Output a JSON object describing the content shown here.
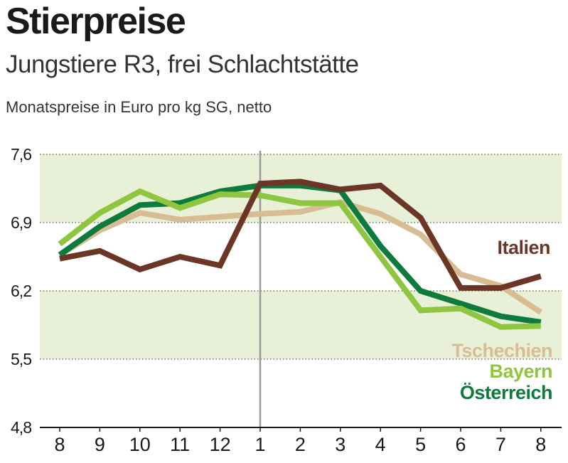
{
  "header": {
    "title": "Stierpreise",
    "subtitle": "Jungstiere R3, frei Schlachtstätte",
    "units": "Monatspreise in Euro pro kg SG, netto"
  },
  "chart_data": {
    "type": "line",
    "categories": [
      "8",
      "9",
      "10",
      "11",
      "12",
      "1",
      "2",
      "3",
      "4",
      "5",
      "6",
      "7",
      "8"
    ],
    "ylim": [
      4.8,
      7.6
    ],
    "yticks": [
      "7,6",
      "6,9",
      "6,2",
      "5,5",
      "4,8"
    ],
    "ytick_values": [
      7.6,
      6.9,
      6.2,
      5.5,
      4.8
    ],
    "band_color": "#e8f0d8",
    "divider_after_category_index": 5,
    "series": [
      {
        "name": "Tschechien",
        "color": "#d8bd94",
        "values": [
          6.57,
          6.82,
          7.0,
          6.93,
          6.96,
          6.99,
          7.01,
          7.11,
          6.99,
          6.78,
          6.37,
          6.25,
          5.98
        ]
      },
      {
        "name": "Österreich",
        "color": "#0e7a3c",
        "values": [
          6.57,
          6.86,
          7.08,
          7.1,
          7.22,
          7.28,
          7.28,
          7.23,
          6.66,
          6.2,
          6.07,
          5.94,
          5.88
        ]
      },
      {
        "name": "Bayern",
        "color": "#8ec63f",
        "values": [
          6.68,
          7.0,
          7.22,
          7.05,
          7.19,
          7.18,
          7.1,
          7.1,
          6.55,
          6.0,
          6.02,
          5.83,
          5.84
        ]
      },
      {
        "name": "Italien",
        "color": "#6b3626",
        "values": [
          6.53,
          6.61,
          6.42,
          6.55,
          6.46,
          7.3,
          7.32,
          7.24,
          7.28,
          6.95,
          6.23,
          6.23,
          6.35
        ]
      }
    ]
  }
}
